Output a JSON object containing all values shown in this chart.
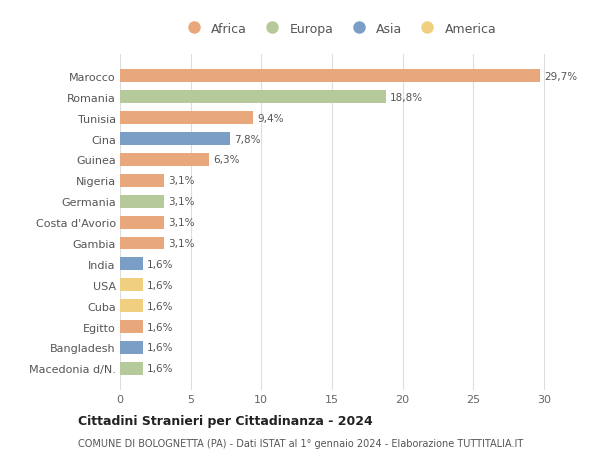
{
  "categories": [
    "Macedonia d/N.",
    "Bangladesh",
    "Egitto",
    "Cuba",
    "USA",
    "India",
    "Gambia",
    "Costa d'Avorio",
    "Germania",
    "Nigeria",
    "Guinea",
    "Cina",
    "Tunisia",
    "Romania",
    "Marocco"
  ],
  "values": [
    1.6,
    1.6,
    1.6,
    1.6,
    1.6,
    1.6,
    3.1,
    3.1,
    3.1,
    3.1,
    6.3,
    7.8,
    9.4,
    18.8,
    29.7
  ],
  "continents": [
    "Europa",
    "Asia",
    "Africa",
    "America",
    "America",
    "Asia",
    "Africa",
    "Africa",
    "Europa",
    "Africa",
    "Africa",
    "Asia",
    "Africa",
    "Europa",
    "Africa"
  ],
  "bar_colors": {
    "Africa": "#E8A87C",
    "Europa": "#B5C99A",
    "Asia": "#7B9EC7",
    "America": "#F0D080"
  },
  "labels": [
    "1,6%",
    "1,6%",
    "1,6%",
    "1,6%",
    "1,6%",
    "1,6%",
    "3,1%",
    "3,1%",
    "3,1%",
    "3,1%",
    "6,3%",
    "7,8%",
    "9,4%",
    "18,8%",
    "29,7%"
  ],
  "title": "Cittadini Stranieri per Cittadinanza - 2024",
  "subtitle": "COMUNE DI BOLOGNETTA (PA) - Dati ISTAT al 1° gennaio 2024 - Elaborazione TUTTITALIA.IT",
  "xlim": [
    0,
    31
  ],
  "xticks": [
    0,
    5,
    10,
    15,
    20,
    25,
    30
  ],
  "background_color": "#ffffff",
  "grid_color": "#dddddd",
  "legend_items": [
    "Africa",
    "Europa",
    "Asia",
    "America"
  ]
}
